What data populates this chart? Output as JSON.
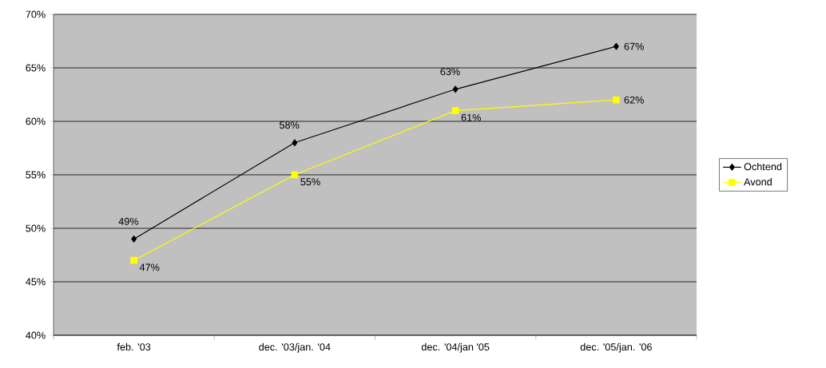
{
  "chart_data": {
    "type": "line",
    "categories": [
      "feb. '03",
      "dec. '03/jan. '04",
      "dec. '04/jan '05",
      "dec. '05/jan. '06"
    ],
    "series": [
      {
        "name": "Ochtend",
        "color": "#000000",
        "marker": "diamond",
        "values": [
          49,
          58,
          63,
          67
        ],
        "value_labels": [
          "49%",
          "58%",
          "63%",
          "67%"
        ]
      },
      {
        "name": "Avond",
        "color": "#ffff00",
        "marker": "square",
        "values": [
          47,
          55,
          61,
          62
        ],
        "value_labels": [
          "47%",
          "55%",
          "61%",
          "62%"
        ]
      }
    ],
    "ylim": [
      40,
      70
    ],
    "yticks": [
      {
        "value": 40,
        "label": "40%"
      },
      {
        "value": 45,
        "label": "45%"
      },
      {
        "value": 50,
        "label": "50%"
      },
      {
        "value": 55,
        "label": "55%"
      },
      {
        "value": 60,
        "label": "60%"
      },
      {
        "value": 65,
        "label": "65%"
      },
      {
        "value": 70,
        "label": "70%"
      }
    ],
    "grid": "y",
    "legend": "right",
    "line_style": "solid"
  }
}
